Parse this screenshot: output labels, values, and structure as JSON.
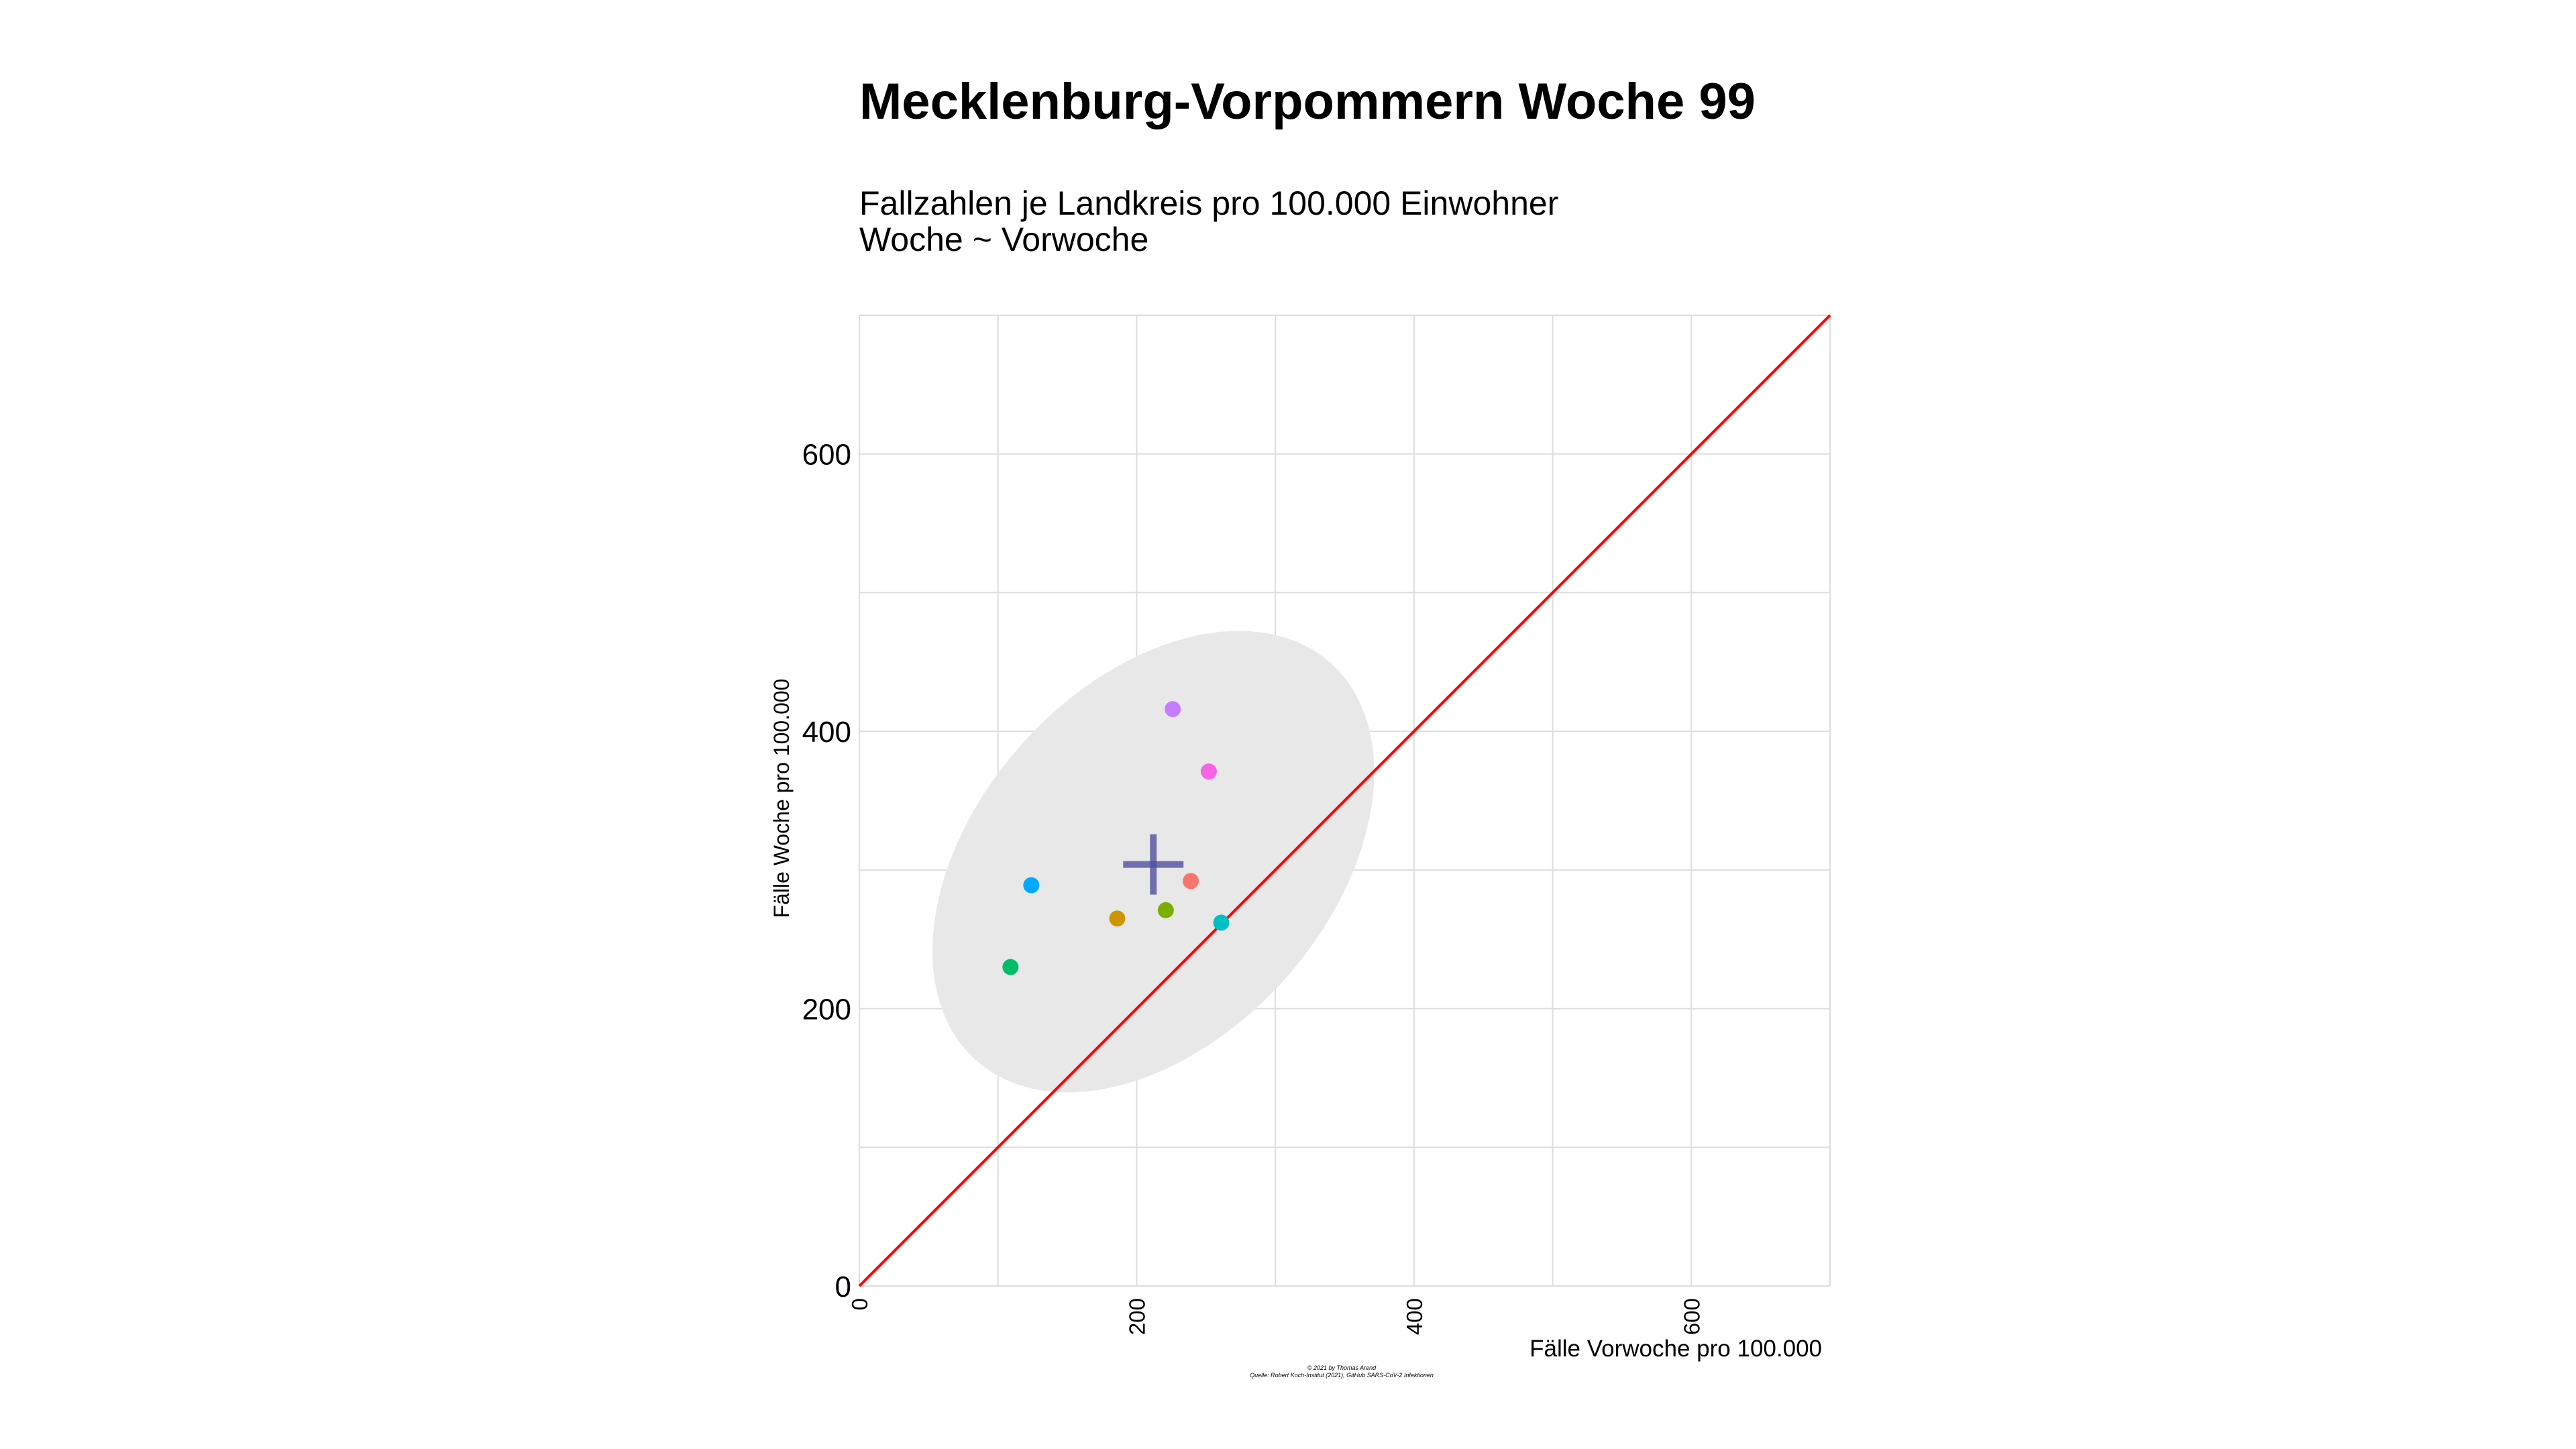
{
  "title": "Mecklenburg-Vorpommern Woche 99",
  "subtitle_line1": "Fallzahlen je Landkreis pro 100.000 Einwohner",
  "subtitle_line2": "Woche ~ Vorwoche",
  "caption_line1": "© 2021 by Thomas Arend",
  "caption_line2": "Quelle: Robert Koch-Institut (2021), GitHub SARS-CoV-2 Infektionen",
  "chart_data": {
    "type": "scatter",
    "xlabel": "Fälle Vorwoche pro 100.000",
    "ylabel": "Fälle Woche pro 100.000",
    "xlim": [
      0,
      700
    ],
    "ylim": [
      0,
      700
    ],
    "x_ticks": [
      0,
      200,
      400,
      600
    ],
    "y_ticks": [
      0,
      200,
      400,
      600
    ],
    "grid": true,
    "reference_line": {
      "slope": 1,
      "intercept": 0,
      "color": "#ff0000"
    },
    "confidence_ellipse": {
      "center": [
        212,
        306
      ],
      "fill": "#e8e8e8"
    },
    "mean_marker": {
      "x": 212,
      "y": 304,
      "color": "#5050a0"
    },
    "points": [
      {
        "x": 226,
        "y": 416,
        "color": "#c77cff"
      },
      {
        "x": 252,
        "y": 371,
        "color": "#f564e3"
      },
      {
        "x": 239,
        "y": 292,
        "color": "#f8766d"
      },
      {
        "x": 124,
        "y": 289,
        "color": "#00a9ff"
      },
      {
        "x": 221,
        "y": 271,
        "color": "#7cae00"
      },
      {
        "x": 186,
        "y": 265,
        "color": "#cd9600"
      },
      {
        "x": 261,
        "y": 262,
        "color": "#00bfc4"
      },
      {
        "x": 109,
        "y": 230,
        "color": "#00be67"
      }
    ]
  }
}
